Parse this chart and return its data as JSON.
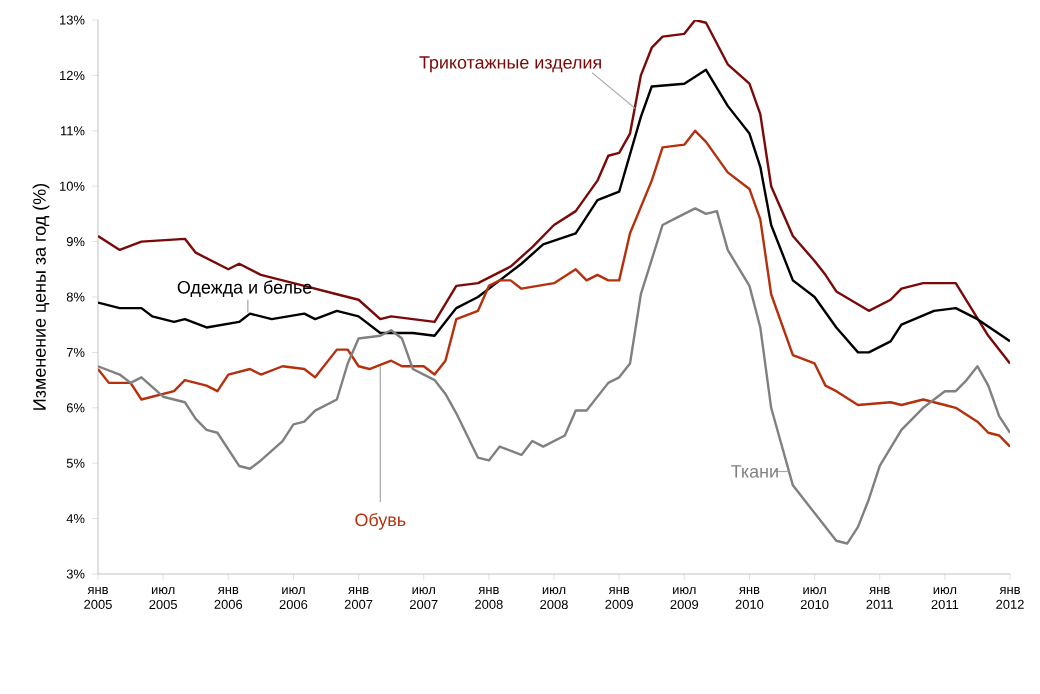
{
  "chart_data": {
    "type": "line",
    "ylabel": "Изменение цены за год (%)",
    "xlim": [
      "2005-01",
      "2012-01"
    ],
    "ylim": [
      3,
      13
    ],
    "xticks": [
      {
        "value": "2005-01",
        "label": "янв 2005"
      },
      {
        "value": "2005-07",
        "label": "июл 2005"
      },
      {
        "value": "2006-01",
        "label": "янв 2006"
      },
      {
        "value": "2006-07",
        "label": "июл 2006"
      },
      {
        "value": "2007-01",
        "label": "янв 2007"
      },
      {
        "value": "2007-07",
        "label": "июл 2007"
      },
      {
        "value": "2008-01",
        "label": "янв 2008"
      },
      {
        "value": "2008-07",
        "label": "июл 2008"
      },
      {
        "value": "2009-01",
        "label": "янв 2009"
      },
      {
        "value": "2009-07",
        "label": "июл 2009"
      },
      {
        "value": "2010-01",
        "label": "янв 2010"
      },
      {
        "value": "2010-07",
        "label": "июл 2010"
      },
      {
        "value": "2011-01",
        "label": "янв 2011"
      },
      {
        "value": "2011-07",
        "label": "июл 2011"
      },
      {
        "value": "2012-01",
        "label": "янв 2012"
      }
    ],
    "yticks": [
      {
        "value": 3,
        "label": "3%"
      },
      {
        "value": 4,
        "label": "4%"
      },
      {
        "value": 5,
        "label": "5%"
      },
      {
        "value": 6,
        "label": "6%"
      },
      {
        "value": 7,
        "label": "7%"
      },
      {
        "value": 8,
        "label": "8%"
      },
      {
        "value": 9,
        "label": "9%"
      },
      {
        "value": 10,
        "label": "10%"
      },
      {
        "value": 11,
        "label": "11%"
      },
      {
        "value": 12,
        "label": "12%"
      },
      {
        "value": 13,
        "label": "13%"
      }
    ],
    "series": [
      {
        "name": "Трикотажные изделия",
        "color": "#7a0a0a",
        "x": [
          "2005-01",
          "2005-03",
          "2005-05",
          "2005-09",
          "2005-10",
          "2006-01",
          "2006-02",
          "2006-04",
          "2006-08",
          "2006-11",
          "2007-01",
          "2007-03",
          "2007-04",
          "2007-08",
          "2007-10",
          "2007-12",
          "2008-03",
          "2008-05",
          "2008-07",
          "2008-09",
          "2008-11",
          "2008-12",
          "2009-01",
          "2009-02",
          "2009-03",
          "2009-04",
          "2009-05",
          "2009-07",
          "2009-08",
          "2009-09",
          "2009-11",
          "2010-01",
          "2010-02",
          "2010-03",
          "2010-05",
          "2010-07",
          "2010-08",
          "2010-09",
          "2010-12",
          "2011-02",
          "2011-03",
          "2011-05",
          "2011-08",
          "2011-11",
          "2012-01"
        ],
        "values": [
          9.1,
          8.85,
          9.0,
          9.05,
          8.8,
          8.5,
          8.6,
          8.4,
          8.2,
          8.05,
          7.95,
          7.6,
          7.65,
          7.55,
          8.2,
          8.25,
          8.55,
          8.9,
          9.3,
          9.55,
          10.1,
          10.55,
          10.6,
          10.95,
          12.0,
          12.5,
          12.7,
          12.75,
          13.0,
          12.95,
          12.2,
          11.85,
          11.3,
          10.0,
          9.1,
          8.65,
          8.4,
          8.1,
          7.75,
          7.95,
          8.15,
          8.25,
          8.25,
          7.3,
          6.8
        ]
      },
      {
        "name": "Одежда и белье",
        "color": "#000000",
        "x": [
          "2005-01",
          "2005-03",
          "2005-05",
          "2005-06",
          "2005-08",
          "2005-09",
          "2005-11",
          "2006-02",
          "2006-03",
          "2006-05",
          "2006-08",
          "2006-09",
          "2006-11",
          "2007-01",
          "2007-03",
          "2007-06",
          "2007-08",
          "2007-10",
          "2007-12",
          "2008-02",
          "2008-04",
          "2008-06",
          "2008-09",
          "2008-11",
          "2009-01",
          "2009-03",
          "2009-04",
          "2009-07",
          "2009-09",
          "2009-11",
          "2010-01",
          "2010-02",
          "2010-03",
          "2010-05",
          "2010-07",
          "2010-09",
          "2010-11",
          "2010-12",
          "2011-02",
          "2011-03",
          "2011-06",
          "2011-08",
          "2011-10",
          "2012-01"
        ],
        "values": [
          7.9,
          7.8,
          7.8,
          7.65,
          7.55,
          7.6,
          7.45,
          7.55,
          7.7,
          7.6,
          7.7,
          7.6,
          7.75,
          7.65,
          7.35,
          7.35,
          7.3,
          7.8,
          8.0,
          8.3,
          8.6,
          8.95,
          9.15,
          9.75,
          9.9,
          11.25,
          11.8,
          11.85,
          12.1,
          11.45,
          10.95,
          10.35,
          9.3,
          8.3,
          8.0,
          7.45,
          7.0,
          7.0,
          7.2,
          7.5,
          7.75,
          7.8,
          7.6,
          7.2
        ]
      },
      {
        "name": "Обувь",
        "color": "#b5300c",
        "x": [
          "2005-01",
          "2005-02",
          "2005-04",
          "2005-05",
          "2005-08",
          "2005-09",
          "2005-11",
          "2005-12",
          "2006-01",
          "2006-03",
          "2006-04",
          "2006-06",
          "2006-08",
          "2006-09",
          "2006-11",
          "2006-12",
          "2007-01",
          "2007-02",
          "2007-04",
          "2007-05",
          "2007-07",
          "2007-08",
          "2007-09",
          "2007-10",
          "2007-12",
          "2008-01",
          "2008-02",
          "2008-03",
          "2008-04",
          "2008-07",
          "2008-09",
          "2008-10",
          "2008-11",
          "2008-12",
          "2009-01",
          "2009-02",
          "2009-04",
          "2009-05",
          "2009-07",
          "2009-08",
          "2009-09",
          "2009-11",
          "2010-01",
          "2010-02",
          "2010-03",
          "2010-05",
          "2010-07",
          "2010-08",
          "2010-09",
          "2010-11",
          "2011-02",
          "2011-03",
          "2011-05",
          "2011-07",
          "2011-08",
          "2011-10",
          "2011-11",
          "2011-12",
          "2012-01"
        ],
        "values": [
          6.7,
          6.45,
          6.45,
          6.15,
          6.3,
          6.5,
          6.4,
          6.3,
          6.6,
          6.7,
          6.6,
          6.75,
          6.7,
          6.55,
          7.05,
          7.05,
          6.75,
          6.7,
          6.85,
          6.75,
          6.75,
          6.6,
          6.85,
          7.6,
          7.75,
          8.2,
          8.3,
          8.3,
          8.15,
          8.25,
          8.5,
          8.3,
          8.4,
          8.3,
          8.3,
          9.15,
          10.1,
          10.7,
          10.75,
          11.0,
          10.8,
          10.25,
          9.95,
          9.4,
          8.05,
          6.95,
          6.8,
          6.4,
          6.3,
          6.05,
          6.1,
          6.05,
          6.15,
          6.05,
          6.0,
          5.75,
          5.55,
          5.5,
          5.3
        ]
      },
      {
        "name": "Ткани",
        "color": "#808080",
        "x": [
          "2005-01",
          "2005-03",
          "2005-04",
          "2005-05",
          "2005-07",
          "2005-09",
          "2005-10",
          "2005-11",
          "2005-12",
          "2006-02",
          "2006-03",
          "2006-04",
          "2006-06",
          "2006-07",
          "2006-08",
          "2006-09",
          "2006-11",
          "2006-12",
          "2007-01",
          "2007-03",
          "2007-04",
          "2007-05",
          "2007-06",
          "2007-08",
          "2007-09",
          "2007-10",
          "2007-12",
          "2008-01",
          "2008-02",
          "2008-04",
          "2008-05",
          "2008-06",
          "2008-08",
          "2008-09",
          "2008-10",
          "2008-12",
          "2009-01",
          "2009-02",
          "2009-03",
          "2009-05",
          "2009-06",
          "2009-08",
          "2009-09",
          "2009-10",
          "2009-11",
          "2010-01",
          "2010-02",
          "2010-03",
          "2010-05",
          "2010-07",
          "2010-09",
          "2010-10",
          "2010-11",
          "2010-12",
          "2011-01",
          "2011-03",
          "2011-05",
          "2011-07",
          "2011-08",
          "2011-09",
          "2011-10",
          "2011-11",
          "2011-12",
          "2012-01"
        ],
        "values": [
          6.75,
          6.6,
          6.45,
          6.55,
          6.2,
          6.1,
          5.8,
          5.6,
          5.55,
          4.95,
          4.9,
          5.05,
          5.4,
          5.7,
          5.75,
          5.95,
          6.15,
          6.8,
          7.25,
          7.3,
          7.4,
          7.25,
          6.7,
          6.5,
          6.25,
          5.9,
          5.1,
          5.05,
          5.3,
          5.15,
          5.4,
          5.3,
          5.5,
          5.95,
          5.95,
          6.45,
          6.55,
          6.8,
          8.05,
          9.3,
          9.4,
          9.6,
          9.5,
          9.55,
          8.85,
          8.2,
          7.45,
          6.0,
          4.6,
          4.1,
          3.6,
          3.55,
          3.85,
          4.35,
          4.95,
          5.6,
          6.0,
          6.3,
          6.3,
          6.5,
          6.75,
          6.4,
          5.85,
          5.55
        ]
      }
    ]
  }
}
